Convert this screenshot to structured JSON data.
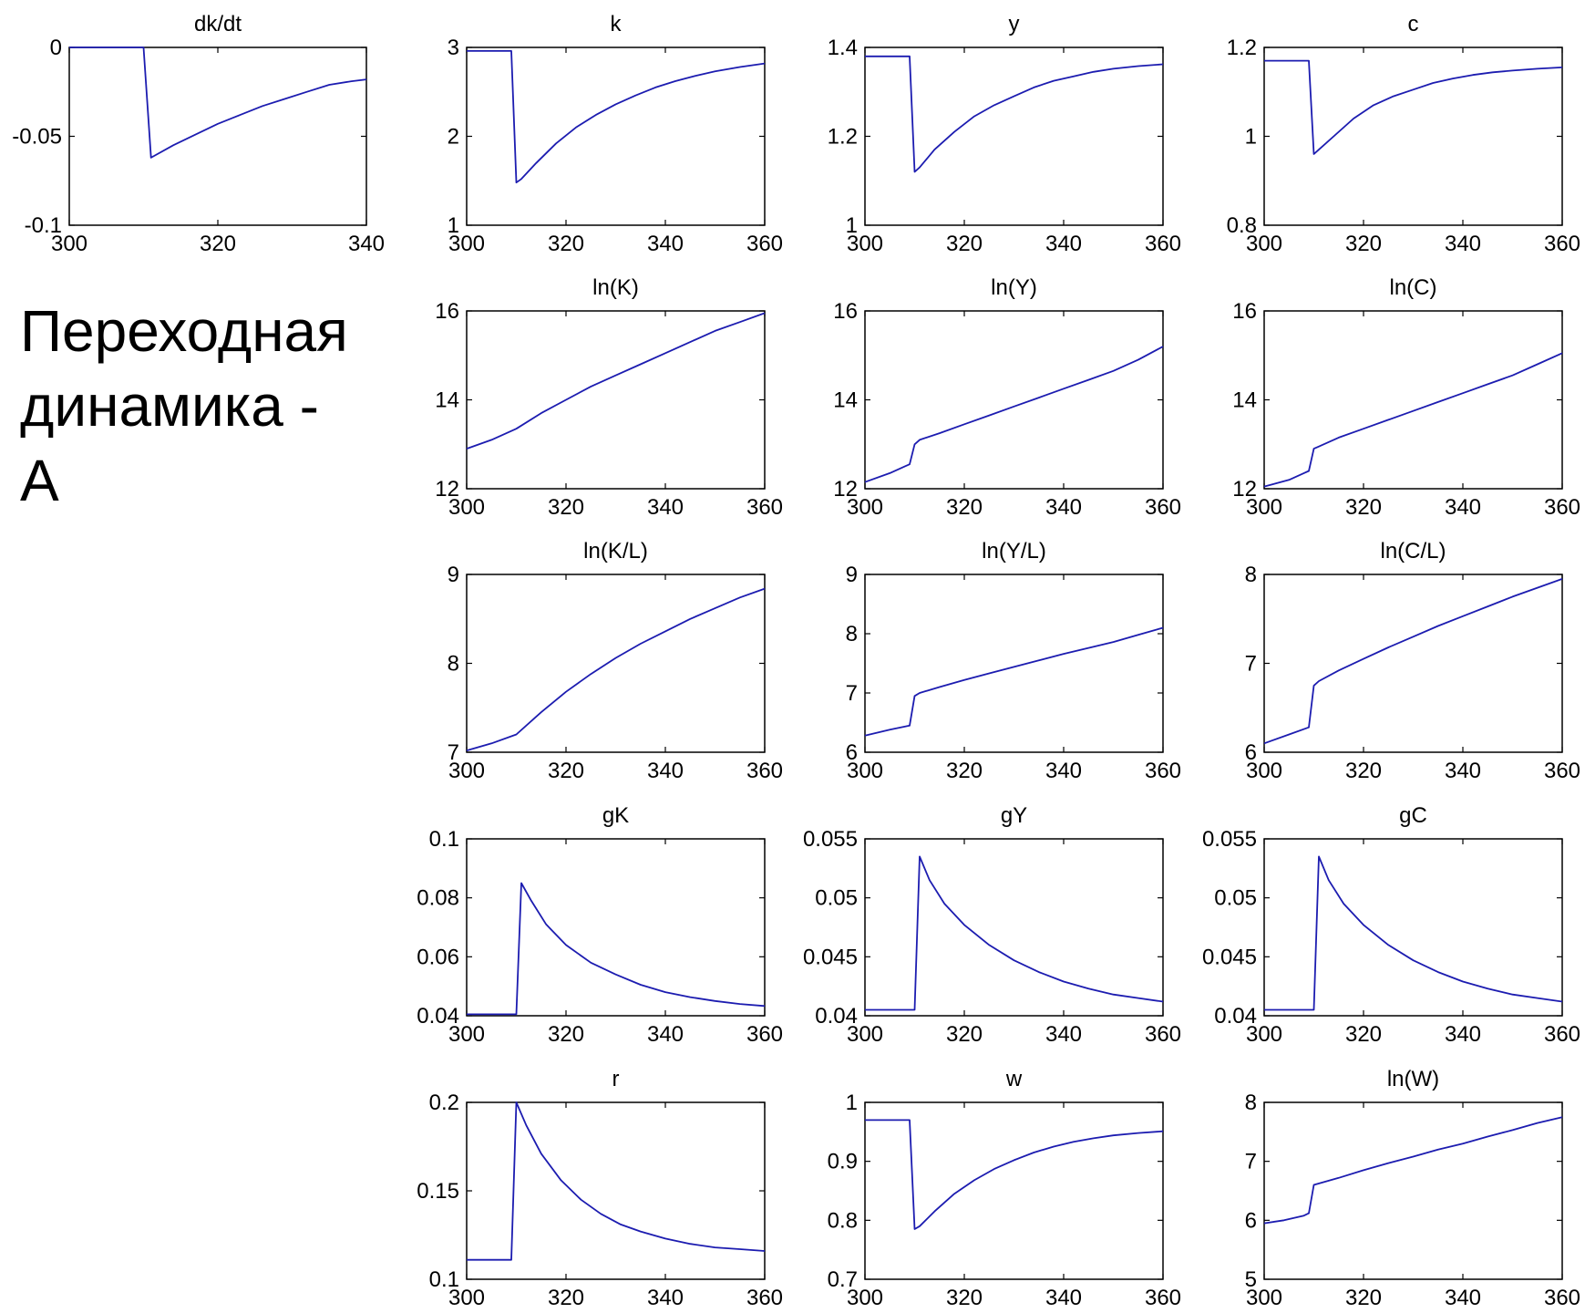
{
  "heading": {
    "lines": [
      "Переходная",
      "динамика -",
      "A"
    ]
  },
  "colors": {
    "line": "#1c1cb0",
    "axes": "#000000",
    "background": "#ffffff"
  },
  "chart_data": [
    {
      "id": "dkdt",
      "type": "line",
      "title": "dk/dt",
      "xlim": [
        300,
        340
      ],
      "ylim": [
        -0.1,
        0
      ],
      "xticks": [
        300,
        320,
        340
      ],
      "xticklabels": [
        "300",
        "320",
        "340"
      ],
      "yticks": [
        -0.1,
        -0.05,
        0
      ],
      "yticklabels": [
        "-0.1",
        "-0.05",
        "0"
      ],
      "x": [
        300,
        304,
        308,
        310,
        311,
        314,
        317,
        320,
        323,
        326,
        329,
        332,
        335,
        338,
        340
      ],
      "y": [
        0,
        0,
        0,
        0,
        -0.062,
        -0.055,
        -0.049,
        -0.043,
        -0.038,
        -0.033,
        -0.029,
        -0.025,
        -0.021,
        -0.019,
        -0.018
      ]
    },
    {
      "id": "k",
      "type": "line",
      "title": "k",
      "xlim": [
        300,
        360
      ],
      "ylim": [
        1,
        3
      ],
      "xticks": [
        300,
        320,
        340,
        360
      ],
      "xticklabels": [
        "300",
        "320",
        "340",
        "360"
      ],
      "yticks": [
        1,
        2,
        3
      ],
      "yticklabels": [
        "1",
        "2",
        "3"
      ],
      "x": [
        300,
        305,
        309,
        310,
        311,
        314,
        318,
        322,
        326,
        330,
        334,
        338,
        342,
        346,
        350,
        355,
        360
      ],
      "y": [
        2.96,
        2.96,
        2.96,
        1.48,
        1.52,
        1.7,
        1.92,
        2.1,
        2.24,
        2.36,
        2.46,
        2.55,
        2.62,
        2.68,
        2.73,
        2.78,
        2.82
      ]
    },
    {
      "id": "y",
      "type": "line",
      "title": "y",
      "xlim": [
        300,
        360
      ],
      "ylim": [
        1,
        1.4
      ],
      "xticks": [
        300,
        320,
        340,
        360
      ],
      "xticklabels": [
        "300",
        "320",
        "340",
        "360"
      ],
      "yticks": [
        1,
        1.2,
        1.4
      ],
      "yticklabels": [
        "1",
        "1.2",
        "1.4"
      ],
      "x": [
        300,
        305,
        309,
        310,
        311,
        314,
        318,
        322,
        326,
        330,
        334,
        338,
        342,
        346,
        350,
        355,
        360
      ],
      "y": [
        1.38,
        1.38,
        1.38,
        1.12,
        1.13,
        1.17,
        1.21,
        1.245,
        1.27,
        1.29,
        1.31,
        1.325,
        1.335,
        1.345,
        1.352,
        1.358,
        1.362
      ]
    },
    {
      "id": "c",
      "type": "line",
      "title": "c",
      "xlim": [
        300,
        360
      ],
      "ylim": [
        0.8,
        1.2
      ],
      "xticks": [
        300,
        320,
        340,
        360
      ],
      "xticklabels": [
        "300",
        "320",
        "340",
        "360"
      ],
      "yticks": [
        0.8,
        1,
        1.2
      ],
      "yticklabels": [
        "0.8",
        "1",
        "1.2"
      ],
      "x": [
        300,
        305,
        309,
        310,
        311,
        314,
        318,
        322,
        326,
        330,
        334,
        338,
        342,
        346,
        350,
        355,
        360
      ],
      "y": [
        1.17,
        1.17,
        1.17,
        0.96,
        0.97,
        1.0,
        1.04,
        1.07,
        1.09,
        1.105,
        1.12,
        1.13,
        1.138,
        1.144,
        1.148,
        1.152,
        1.155
      ]
    },
    {
      "id": "lnK",
      "type": "line",
      "title": "ln(K)",
      "xlim": [
        300,
        360
      ],
      "ylim": [
        12,
        16
      ],
      "xticks": [
        300,
        320,
        340,
        360
      ],
      "xticklabels": [
        "300",
        "320",
        "340",
        "360"
      ],
      "yticks": [
        12,
        14,
        16
      ],
      "yticklabels": [
        "12",
        "14",
        "16"
      ],
      "x": [
        300,
        305,
        310,
        315,
        320,
        325,
        330,
        335,
        340,
        345,
        350,
        355,
        360
      ],
      "y": [
        12.9,
        13.1,
        13.35,
        13.7,
        14.0,
        14.3,
        14.55,
        14.8,
        15.05,
        15.3,
        15.55,
        15.75,
        15.95
      ]
    },
    {
      "id": "lnY",
      "type": "line",
      "title": "ln(Y)",
      "xlim": [
        300,
        360
      ],
      "ylim": [
        12,
        16
      ],
      "xticks": [
        300,
        320,
        340,
        360
      ],
      "xticklabels": [
        "300",
        "320",
        "340",
        "360"
      ],
      "yticks": [
        12,
        14,
        16
      ],
      "yticklabels": [
        "12",
        "14",
        "16"
      ],
      "x": [
        300,
        305,
        308,
        309,
        310,
        311,
        315,
        320,
        325,
        330,
        335,
        340,
        345,
        350,
        355,
        360
      ],
      "y": [
        12.15,
        12.35,
        12.5,
        12.55,
        13.0,
        13.1,
        13.25,
        13.45,
        13.65,
        13.85,
        14.05,
        14.25,
        14.45,
        14.65,
        14.9,
        15.2
      ]
    },
    {
      "id": "lnC",
      "type": "line",
      "title": "ln(C)",
      "xlim": [
        300,
        360
      ],
      "ylim": [
        12,
        16
      ],
      "xticks": [
        300,
        320,
        340,
        360
      ],
      "xticklabels": [
        "300",
        "320",
        "340",
        "360"
      ],
      "yticks": [
        12,
        14,
        16
      ],
      "yticklabels": [
        "12",
        "14",
        "16"
      ],
      "x": [
        300,
        305,
        308,
        309,
        310,
        311,
        315,
        320,
        325,
        330,
        335,
        340,
        345,
        350,
        355,
        360
      ],
      "y": [
        12.05,
        12.2,
        12.35,
        12.4,
        12.9,
        12.95,
        13.15,
        13.35,
        13.55,
        13.75,
        13.95,
        14.15,
        14.35,
        14.55,
        14.8,
        15.05
      ]
    },
    {
      "id": "lnKL",
      "type": "line",
      "title": "ln(K/L)",
      "xlim": [
        300,
        360
      ],
      "ylim": [
        7,
        9
      ],
      "xticks": [
        300,
        320,
        340,
        360
      ],
      "xticklabels": [
        "300",
        "320",
        "340",
        "360"
      ],
      "yticks": [
        7,
        8,
        9
      ],
      "yticklabels": [
        "7",
        "8",
        "9"
      ],
      "x": [
        300,
        305,
        310,
        315,
        320,
        325,
        330,
        335,
        340,
        345,
        350,
        355,
        360
      ],
      "y": [
        7.02,
        7.1,
        7.2,
        7.45,
        7.68,
        7.88,
        8.06,
        8.22,
        8.36,
        8.5,
        8.62,
        8.74,
        8.84
      ]
    },
    {
      "id": "lnYL",
      "type": "line",
      "title": "ln(Y/L)",
      "xlim": [
        300,
        360
      ],
      "ylim": [
        6,
        9
      ],
      "xticks": [
        300,
        320,
        340,
        360
      ],
      "xticklabels": [
        "300",
        "320",
        "340",
        "360"
      ],
      "yticks": [
        6,
        7,
        8,
        9
      ],
      "yticklabels": [
        "6",
        "7",
        "8",
        "9"
      ],
      "x": [
        300,
        305,
        309,
        310,
        311,
        315,
        320,
        325,
        330,
        335,
        340,
        345,
        350,
        355,
        360
      ],
      "y": [
        6.28,
        6.38,
        6.45,
        6.95,
        7.0,
        7.1,
        7.22,
        7.33,
        7.44,
        7.55,
        7.66,
        7.76,
        7.86,
        7.98,
        8.1
      ]
    },
    {
      "id": "lnCL",
      "type": "line",
      "title": "ln(C/L)",
      "xlim": [
        300,
        360
      ],
      "ylim": [
        6,
        8
      ],
      "xticks": [
        300,
        320,
        340,
        360
      ],
      "xticklabels": [
        "300",
        "320",
        "340",
        "360"
      ],
      "yticks": [
        6,
        7,
        8
      ],
      "yticklabels": [
        "6",
        "7",
        "8"
      ],
      "x": [
        300,
        305,
        309,
        310,
        311,
        315,
        320,
        325,
        330,
        335,
        340,
        345,
        350,
        355,
        360
      ],
      "y": [
        6.1,
        6.2,
        6.28,
        6.75,
        6.8,
        6.92,
        7.05,
        7.18,
        7.3,
        7.42,
        7.53,
        7.64,
        7.75,
        7.85,
        7.95
      ]
    },
    {
      "id": "gK",
      "type": "line",
      "title": "gK",
      "xlim": [
        300,
        360
      ],
      "ylim": [
        0.04,
        0.1
      ],
      "xticks": [
        300,
        320,
        340,
        360
      ],
      "xticklabels": [
        "300",
        "320",
        "340",
        "360"
      ],
      "yticks": [
        0.04,
        0.06,
        0.08,
        0.1
      ],
      "yticklabels": [
        "0.04",
        "0.06",
        "0.08",
        "0.1"
      ],
      "x": [
        300,
        305,
        310,
        311,
        313,
        316,
        320,
        325,
        330,
        335,
        340,
        345,
        350,
        355,
        360
      ],
      "y": [
        0.0405,
        0.0405,
        0.0405,
        0.085,
        0.079,
        0.071,
        0.064,
        0.058,
        0.054,
        0.0505,
        0.048,
        0.0463,
        0.045,
        0.044,
        0.0433
      ]
    },
    {
      "id": "gY",
      "type": "line",
      "title": "gY",
      "xlim": [
        300,
        360
      ],
      "ylim": [
        0.04,
        0.055
      ],
      "xticks": [
        300,
        320,
        340,
        360
      ],
      "xticklabels": [
        "300",
        "320",
        "340",
        "360"
      ],
      "yticks": [
        0.04,
        0.045,
        0.05,
        0.055
      ],
      "yticklabels": [
        "0.04",
        "0.045",
        "0.05",
        "0.055"
      ],
      "x": [
        300,
        305,
        310,
        311,
        313,
        316,
        320,
        325,
        330,
        335,
        340,
        345,
        350,
        355,
        360
      ],
      "y": [
        0.0405,
        0.0405,
        0.0405,
        0.0535,
        0.0515,
        0.0495,
        0.0477,
        0.046,
        0.0447,
        0.0437,
        0.0429,
        0.0423,
        0.0418,
        0.0415,
        0.0412
      ]
    },
    {
      "id": "gC",
      "type": "line",
      "title": "gC",
      "xlim": [
        300,
        360
      ],
      "ylim": [
        0.04,
        0.055
      ],
      "xticks": [
        300,
        320,
        340,
        360
      ],
      "xticklabels": [
        "300",
        "320",
        "340",
        "360"
      ],
      "yticks": [
        0.04,
        0.045,
        0.05,
        0.055
      ],
      "yticklabels": [
        "0.04",
        "0.045",
        "0.05",
        "0.055"
      ],
      "x": [
        300,
        305,
        310,
        311,
        313,
        316,
        320,
        325,
        330,
        335,
        340,
        345,
        350,
        355,
        360
      ],
      "y": [
        0.0405,
        0.0405,
        0.0405,
        0.0535,
        0.0515,
        0.0495,
        0.0477,
        0.046,
        0.0447,
        0.0437,
        0.0429,
        0.0423,
        0.0418,
        0.0415,
        0.0412
      ]
    },
    {
      "id": "r",
      "type": "line",
      "title": "r",
      "xlim": [
        300,
        360
      ],
      "ylim": [
        0.1,
        0.2
      ],
      "xticks": [
        300,
        320,
        340,
        360
      ],
      "xticklabels": [
        "300",
        "320",
        "340",
        "360"
      ],
      "yticks": [
        0.1,
        0.15,
        0.2
      ],
      "yticklabels": [
        "0.1",
        "0.15",
        "0.2"
      ],
      "x": [
        300,
        305,
        309,
        310,
        312,
        315,
        319,
        323,
        327,
        331,
        335,
        340,
        345,
        350,
        355,
        360
      ],
      "y": [
        0.111,
        0.111,
        0.111,
        0.2,
        0.187,
        0.171,
        0.156,
        0.145,
        0.137,
        0.131,
        0.127,
        0.123,
        0.12,
        0.118,
        0.117,
        0.116
      ]
    },
    {
      "id": "w",
      "type": "line",
      "title": "w",
      "xlim": [
        300,
        360
      ],
      "ylim": [
        0.7,
        1
      ],
      "xticks": [
        300,
        320,
        340,
        360
      ],
      "xticklabels": [
        "300",
        "320",
        "340",
        "360"
      ],
      "yticks": [
        0.7,
        0.8,
        0.9,
        1
      ],
      "yticklabels": [
        "0.7",
        "0.8",
        "0.9",
        "1"
      ],
      "x": [
        300,
        305,
        309,
        310,
        311,
        314,
        318,
        322,
        326,
        330,
        334,
        338,
        342,
        346,
        350,
        355,
        360
      ],
      "y": [
        0.97,
        0.97,
        0.97,
        0.785,
        0.79,
        0.815,
        0.845,
        0.868,
        0.887,
        0.902,
        0.915,
        0.925,
        0.933,
        0.939,
        0.944,
        0.948,
        0.951
      ]
    },
    {
      "id": "lnW",
      "type": "line",
      "title": "ln(W)",
      "xlim": [
        300,
        360
      ],
      "ylim": [
        5,
        8
      ],
      "xticks": [
        300,
        320,
        340,
        360
      ],
      "xticklabels": [
        "300",
        "320",
        "340",
        "360"
      ],
      "yticks": [
        5,
        6,
        7,
        8
      ],
      "yticklabels": [
        "5",
        "6",
        "7",
        "8"
      ],
      "x": [
        300,
        304,
        308,
        309,
        310,
        315,
        320,
        325,
        330,
        335,
        340,
        345,
        350,
        355,
        360
      ],
      "y": [
        5.95,
        6.0,
        6.08,
        6.12,
        6.6,
        6.72,
        6.85,
        6.97,
        7.08,
        7.2,
        7.3,
        7.42,
        7.53,
        7.65,
        7.75
      ]
    }
  ]
}
